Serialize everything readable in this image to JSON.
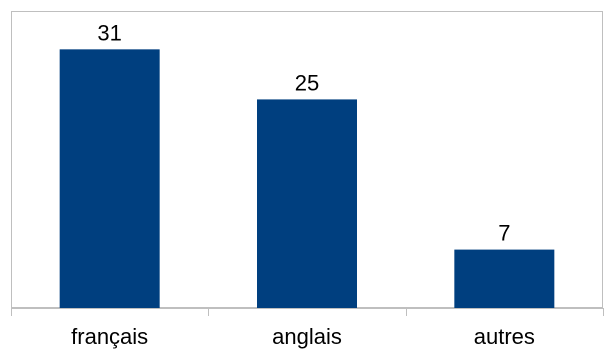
{
  "chart_data": {
    "type": "bar",
    "title": "",
    "xlabel": "",
    "ylabel": "",
    "categories": [
      "français",
      "anglais",
      "autres"
    ],
    "values": [
      31,
      25,
      7
    ],
    "data_labels": [
      "31",
      "25",
      "7"
    ],
    "ylim": [
      0,
      32
    ],
    "grid": false,
    "legend": "none",
    "colors": {
      "bar": "#003F7F",
      "plot_border": "#BFBFBF",
      "axis": "#BFBFBF"
    }
  }
}
